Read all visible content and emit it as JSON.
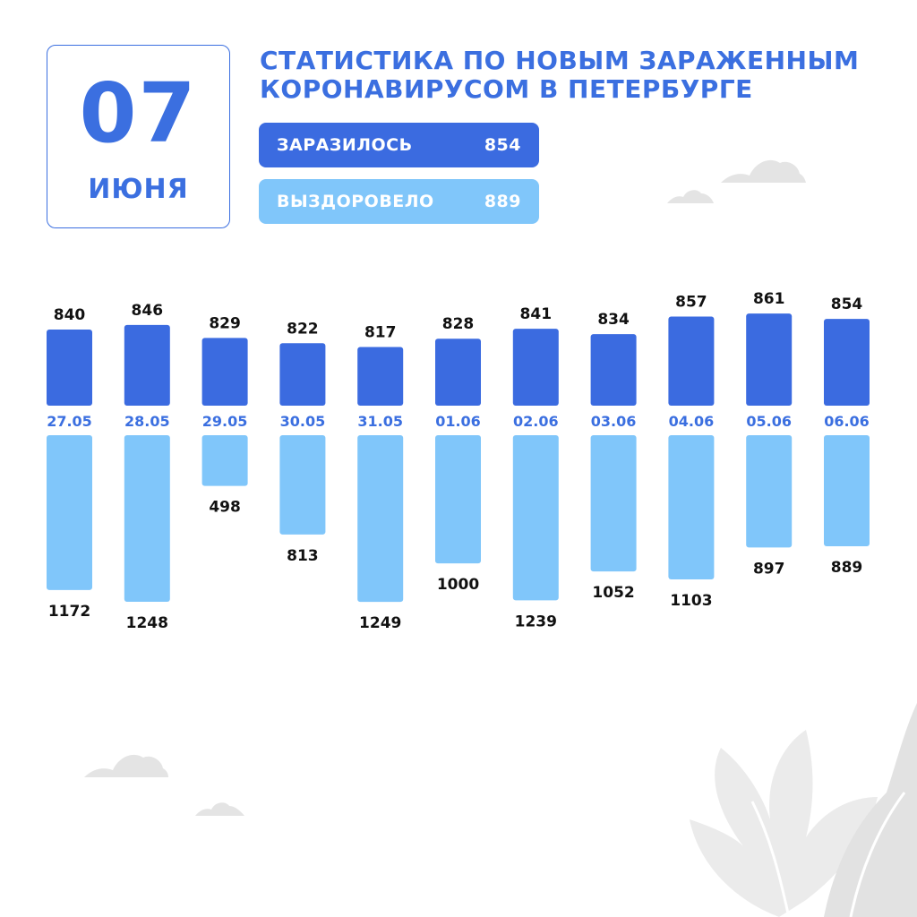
{
  "date": {
    "day": "07",
    "month": "ИЮНЯ"
  },
  "title": {
    "line1": "СТАТИСТИКА ПО НОВЫМ ЗАРАЖЕННЫМ",
    "line2": "КОРОНАВИРУСОМ В ПЕТЕРБУРГЕ"
  },
  "summary": {
    "infected": {
      "label": "ЗАРАЗИЛОСЬ",
      "value": "854"
    },
    "recovered": {
      "label": "ВЫЗДОРОВЕЛО",
      "value": "889"
    }
  },
  "colors": {
    "infected": "#3b6be0",
    "recovered": "#80c6fa",
    "accent": "#3b6fe0"
  },
  "chart_data": {
    "type": "bar",
    "categories": [
      "27.05",
      "28.05",
      "29.05",
      "30.05",
      "31.05",
      "01.06",
      "02.06",
      "03.06",
      "04.06",
      "05.06",
      "06.06"
    ],
    "series": [
      {
        "values": [
          840,
          846,
          829,
          822,
          817,
          828,
          841,
          834,
          857,
          861,
          854
        ]
      },
      {
        "values": [
          1172,
          1248,
          498,
          813,
          1249,
          1000,
          1239,
          1052,
          1103,
          897,
          889
        ]
      }
    ]
  }
}
